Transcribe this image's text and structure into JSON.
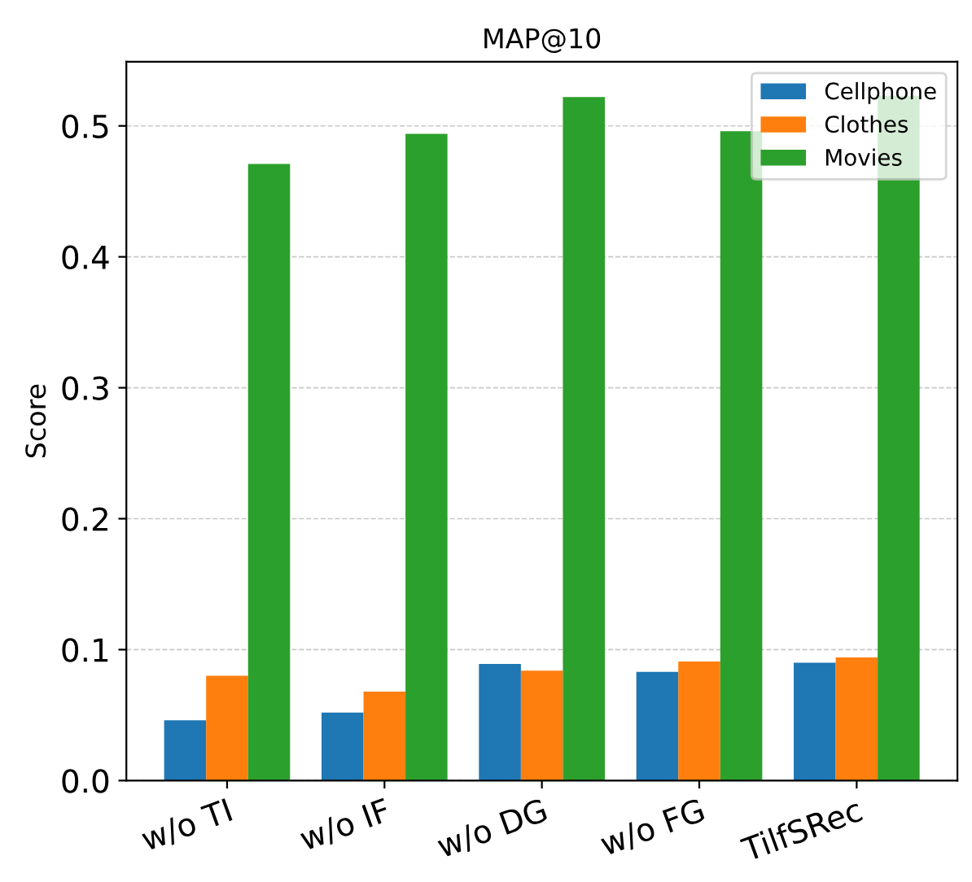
{
  "chart_data": {
    "type": "bar",
    "title": "MAP@10",
    "ylabel": "Score",
    "categories": [
      "w/o TI",
      "w/o IF",
      "w/o DG",
      "w/o FG",
      "TilfSRec"
    ],
    "series": [
      {
        "name": "Cellphone",
        "color": "#1f77b4",
        "values": [
          0.046,
          0.052,
          0.089,
          0.083,
          0.09
        ]
      },
      {
        "name": "Clothes",
        "color": "#ff7f0e",
        "values": [
          0.08,
          0.068,
          0.084,
          0.091,
          0.094
        ]
      },
      {
        "name": "Movies",
        "color": "#2ca02c",
        "values": [
          0.471,
          0.494,
          0.522,
          0.496,
          0.523
        ]
      }
    ],
    "ylim": [
      0,
      0.549
    ],
    "yticks": [
      {
        "value": 0,
        "label": "0.0"
      },
      0.1,
      0.2,
      0.3,
      0.4,
      0.5
    ],
    "grid": "y",
    "legend": "top right"
  }
}
